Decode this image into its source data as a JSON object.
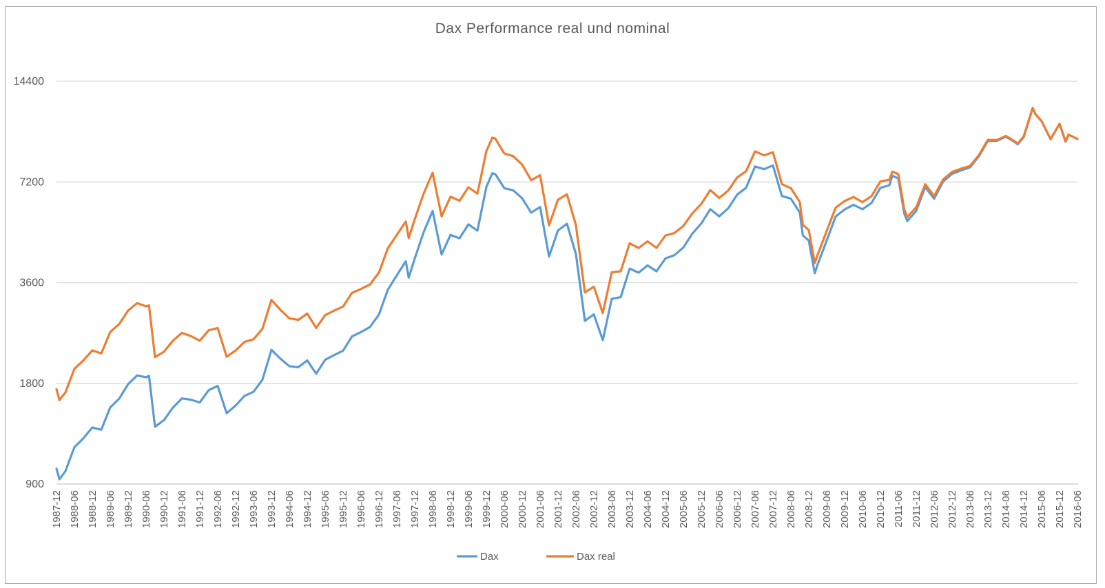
{
  "frame": {
    "border_color": "#ababab",
    "background": "#ffffff"
  },
  "chart_data": {
    "type": "line",
    "title": "Dax Performance real und nominal",
    "x_axis": {
      "unit": "months since 1987-12",
      "tick_step_months": 6,
      "tick_labels": [
        "1987-12",
        "1988-06",
        "1988-12",
        "1989-06",
        "1989-12",
        "1990-06",
        "1990-12",
        "1991-06",
        "1991-12",
        "1992-06",
        "1992-12",
        "1993-06",
        "1993-12",
        "1994-06",
        "1994-12",
        "1995-06",
        "1995-12",
        "1996-06",
        "1996-12",
        "1997-06",
        "1997-12",
        "1998-06",
        "1998-12",
        "1999-06",
        "1999-12",
        "2000-06",
        "2000-12",
        "2001-06",
        "2001-12",
        "2002-06",
        "2002-12",
        "2003-06",
        "2003-12",
        "2004-06",
        "2004-12",
        "2005-06",
        "2005-12",
        "2006-06",
        "2006-12",
        "2007-06",
        "2007-12",
        "2008-06",
        "2008-12",
        "2009-06",
        "2009-12",
        "2010-06",
        "2010-12",
        "2011-06",
        "2011-12",
        "2012-06",
        "2012-12",
        "2013-06",
        "2013-12",
        "2014-06",
        "2014-12",
        "2015-06",
        "2015-12",
        "2016-06"
      ]
    },
    "y_axis": {
      "scale": "log2",
      "ticks": [
        900,
        1800,
        3600,
        7200,
        14400
      ],
      "tick_labels": [
        "900",
        "1800",
        "3600",
        "7200",
        "14400"
      ],
      "range": [
        900,
        14400
      ]
    },
    "grid": true,
    "grid_color": "#d9d9d9",
    "axis_text_color": "#595959",
    "legend": {
      "position": "bottom",
      "entries": [
        "Dax",
        "Dax real"
      ]
    },
    "series": [
      {
        "name": "Dax",
        "color": "#5b9bd5",
        "points": [
          [
            0,
            1000
          ],
          [
            1,
            930
          ],
          [
            3,
            984
          ],
          [
            6,
            1160
          ],
          [
            9,
            1232
          ],
          [
            12,
            1328
          ],
          [
            15,
            1308
          ],
          [
            18,
            1526
          ],
          [
            21,
            1620
          ],
          [
            24,
            1790
          ],
          [
            27,
            1900
          ],
          [
            30,
            1876
          ],
          [
            31,
            1895
          ],
          [
            33,
            1335
          ],
          [
            36,
            1398
          ],
          [
            39,
            1523
          ],
          [
            42,
            1622
          ],
          [
            45,
            1608
          ],
          [
            48,
            1578
          ],
          [
            51,
            1717
          ],
          [
            54,
            1768
          ],
          [
            57,
            1466
          ],
          [
            60,
            1545
          ],
          [
            63,
            1652
          ],
          [
            66,
            1698
          ],
          [
            69,
            1846
          ],
          [
            72,
            2267
          ],
          [
            75,
            2133
          ],
          [
            78,
            2025
          ],
          [
            81,
            2012
          ],
          [
            84,
            2107
          ],
          [
            87,
            1923
          ],
          [
            90,
            2116
          ],
          [
            93,
            2187
          ],
          [
            96,
            2254
          ],
          [
            99,
            2486
          ],
          [
            102,
            2562
          ],
          [
            105,
            2652
          ],
          [
            108,
            2889
          ],
          [
            111,
            3429
          ],
          [
            114,
            3788
          ],
          [
            117,
            4170
          ],
          [
            118,
            3727
          ],
          [
            120,
            4250
          ],
          [
            123,
            5097
          ],
          [
            126,
            5897
          ],
          [
            129,
            4371
          ],
          [
            132,
            5002
          ],
          [
            135,
            4884
          ],
          [
            138,
            5379
          ],
          [
            141,
            5150
          ],
          [
            144,
            6958
          ],
          [
            146,
            7644
          ],
          [
            147,
            7599
          ],
          [
            150,
            6898
          ],
          [
            153,
            6798
          ],
          [
            156,
            6434
          ],
          [
            159,
            5830
          ],
          [
            162,
            6058
          ],
          [
            165,
            4308
          ],
          [
            168,
            5160
          ],
          [
            171,
            5397
          ],
          [
            174,
            4383
          ],
          [
            177,
            2769
          ],
          [
            180,
            2893
          ],
          [
            183,
            2424
          ],
          [
            186,
            3221
          ],
          [
            189,
            3257
          ],
          [
            192,
            3965
          ],
          [
            195,
            3857
          ],
          [
            198,
            4053
          ],
          [
            201,
            3893
          ],
          [
            204,
            4256
          ],
          [
            207,
            4349
          ],
          [
            210,
            4586
          ],
          [
            213,
            5044
          ],
          [
            216,
            5408
          ],
          [
            219,
            5970
          ],
          [
            222,
            5683
          ],
          [
            225,
            6004
          ],
          [
            228,
            6597
          ],
          [
            231,
            6917
          ],
          [
            234,
            8007
          ],
          [
            237,
            7861
          ],
          [
            240,
            8067
          ],
          [
            243,
            6535
          ],
          [
            246,
            6418
          ],
          [
            249,
            5831
          ],
          [
            250,
            4988
          ],
          [
            252,
            4810
          ],
          [
            254,
            3844
          ],
          [
            255,
            4085
          ],
          [
            258,
            4809
          ],
          [
            261,
            5675
          ],
          [
            264,
            5957
          ],
          [
            267,
            6154
          ],
          [
            270,
            5966
          ],
          [
            273,
            6229
          ],
          [
            276,
            6914
          ],
          [
            279,
            7041
          ],
          [
            280,
            7514
          ],
          [
            282,
            7376
          ],
          [
            284,
            5785
          ],
          [
            285,
            5502
          ],
          [
            288,
            5898
          ],
          [
            291,
            6947
          ],
          [
            294,
            6416
          ],
          [
            297,
            7216
          ],
          [
            300,
            7612
          ],
          [
            303,
            7795
          ],
          [
            306,
            7959
          ],
          [
            309,
            8594
          ],
          [
            312,
            9552
          ],
          [
            315,
            9556
          ],
          [
            318,
            9833
          ],
          [
            321,
            9474
          ],
          [
            322,
            9327
          ],
          [
            324,
            9806
          ],
          [
            327,
            11966
          ],
          [
            328,
            11454
          ],
          [
            330,
            10945
          ],
          [
            333,
            9660
          ],
          [
            336,
            10743
          ],
          [
            338,
            9495
          ],
          [
            339,
            9966
          ],
          [
            342,
            9680
          ]
        ]
      },
      {
        "name": "Dax real",
        "color": "#ed7d31",
        "points": [
          [
            0,
            1730
          ],
          [
            1,
            1604
          ],
          [
            3,
            1692
          ],
          [
            6,
            1989
          ],
          [
            9,
            2107
          ],
          [
            12,
            2258
          ],
          [
            15,
            2211
          ],
          [
            18,
            2564
          ],
          [
            21,
            2705
          ],
          [
            24,
            2971
          ],
          [
            27,
            3126
          ],
          [
            30,
            3058
          ],
          [
            31,
            3079
          ],
          [
            33,
            2156
          ],
          [
            36,
            2237
          ],
          [
            39,
            2414
          ],
          [
            42,
            2547
          ],
          [
            45,
            2492
          ],
          [
            48,
            2414
          ],
          [
            51,
            2593
          ],
          [
            54,
            2634
          ],
          [
            57,
            2162
          ],
          [
            60,
            2256
          ],
          [
            63,
            2395
          ],
          [
            66,
            2437
          ],
          [
            69,
            2621
          ],
          [
            72,
            3196
          ],
          [
            75,
            2986
          ],
          [
            78,
            2815
          ],
          [
            81,
            2787
          ],
          [
            84,
            2908
          ],
          [
            87,
            2635
          ],
          [
            90,
            2878
          ],
          [
            93,
            2968
          ],
          [
            96,
            3054
          ],
          [
            99,
            3356
          ],
          [
            102,
            3446
          ],
          [
            105,
            3554
          ],
          [
            108,
            3857
          ],
          [
            111,
            4561
          ],
          [
            114,
            5000
          ],
          [
            117,
            5484
          ],
          [
            118,
            4894
          ],
          [
            120,
            5568
          ],
          [
            123,
            6652
          ],
          [
            126,
            7666
          ],
          [
            129,
            5682
          ],
          [
            132,
            6503
          ],
          [
            135,
            6325
          ],
          [
            138,
            6939
          ],
          [
            141,
            6644
          ],
          [
            144,
            8906
          ],
          [
            146,
            9769
          ],
          [
            147,
            9704
          ],
          [
            150,
            8760
          ],
          [
            153,
            8599
          ],
          [
            156,
            8107
          ],
          [
            159,
            7288
          ],
          [
            162,
            7542
          ],
          [
            165,
            5342
          ],
          [
            168,
            6373
          ],
          [
            171,
            6611
          ],
          [
            174,
            5347
          ],
          [
            177,
            3364
          ],
          [
            180,
            3500
          ],
          [
            183,
            2921
          ],
          [
            186,
            3865
          ],
          [
            189,
            3892
          ],
          [
            192,
            4718
          ],
          [
            195,
            4571
          ],
          [
            198,
            4783
          ],
          [
            201,
            4574
          ],
          [
            204,
            4980
          ],
          [
            207,
            5067
          ],
          [
            210,
            5320
          ],
          [
            213,
            5801
          ],
          [
            216,
            6192
          ],
          [
            219,
            6806
          ],
          [
            222,
            6450
          ],
          [
            225,
            6785
          ],
          [
            228,
            7422
          ],
          [
            231,
            7747
          ],
          [
            234,
            8888
          ],
          [
            237,
            8647
          ],
          [
            240,
            8833
          ],
          [
            243,
            7091
          ],
          [
            246,
            6899
          ],
          [
            249,
            6268
          ],
          [
            250,
            5362
          ],
          [
            252,
            5171
          ],
          [
            254,
            4121
          ],
          [
            255,
            4371
          ],
          [
            258,
            5136
          ],
          [
            261,
            6033
          ],
          [
            264,
            6314
          ],
          [
            267,
            6492
          ],
          [
            270,
            6264
          ],
          [
            273,
            6528
          ],
          [
            276,
            7225
          ],
          [
            279,
            7309
          ],
          [
            280,
            7729
          ],
          [
            282,
            7597
          ],
          [
            284,
            5947
          ],
          [
            285,
            5651
          ],
          [
            288,
            6045
          ],
          [
            291,
            7086
          ],
          [
            294,
            6531
          ],
          [
            297,
            7324
          ],
          [
            300,
            7711
          ],
          [
            303,
            7889
          ],
          [
            306,
            8039
          ],
          [
            309,
            8663
          ],
          [
            312,
            9619
          ],
          [
            315,
            9613
          ],
          [
            318,
            9882
          ],
          [
            321,
            9521
          ],
          [
            322,
            9374
          ],
          [
            324,
            9855
          ],
          [
            327,
            11990
          ],
          [
            328,
            11465
          ],
          [
            330,
            10945
          ],
          [
            333,
            9660
          ],
          [
            336,
            10743
          ],
          [
            338,
            9514
          ],
          [
            339,
            9976
          ],
          [
            342,
            9680
          ]
        ]
      }
    ]
  }
}
